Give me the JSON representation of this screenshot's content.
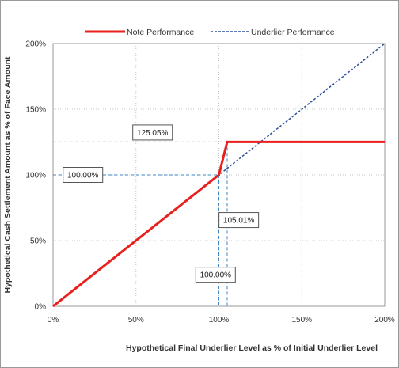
{
  "chart_data": {
    "type": "line",
    "title": "",
    "xlabel": "Hypothetical Final Underlier Level as % of Initial Underlier Level",
    "ylabel": "Hypothetical Cash Settlement Amount as % of Face Amount",
    "xlim": [
      0,
      200
    ],
    "ylim": [
      0,
      200
    ],
    "x_ticks": [
      "0%",
      "50%",
      "100%",
      "150%",
      "200%"
    ],
    "y_ticks": [
      "0%",
      "50%",
      "100%",
      "150%",
      "200%"
    ],
    "grid": true,
    "legend_position": "top",
    "series": [
      {
        "name": "Note Performance",
        "style": "solid",
        "color": "#e8211e",
        "x": [
          0,
          100,
          105.01,
          200
        ],
        "y": [
          0,
          100,
          125.05,
          125.05
        ]
      },
      {
        "name": "Underlier Performance",
        "style": "dashed",
        "color": "#2c4c9c",
        "x": [
          0,
          200
        ],
        "y": [
          0,
          200
        ]
      }
    ],
    "annotations": [
      {
        "label": "125.05%",
        "refers_to": "y",
        "value": 125.05
      },
      {
        "label": "100.00%",
        "refers_to": "y",
        "value": 100
      },
      {
        "label": "105.01%",
        "refers_to": "x",
        "value": 105.01
      },
      {
        "label": "100.00%",
        "refers_to": "x",
        "value": 100
      }
    ],
    "reference_line_color": "#3f86c8"
  }
}
